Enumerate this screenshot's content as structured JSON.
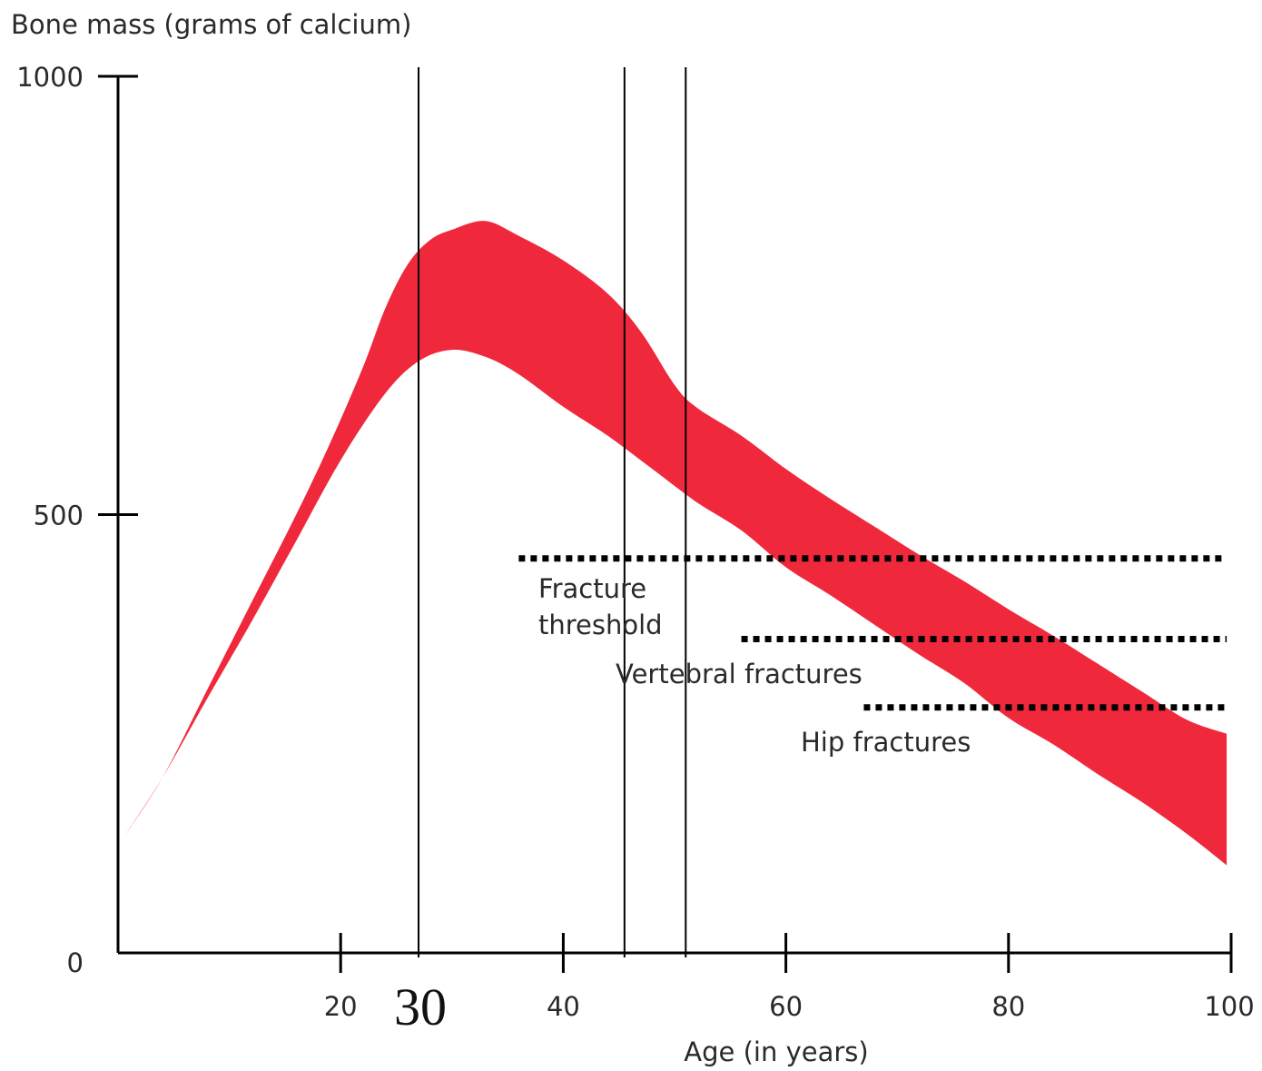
{
  "chart_data": {
    "type": "area",
    "ylabel": "Bone mass (grams of calcium)",
    "xlabel": "Age (in years)",
    "xlim": [
      0,
      100
    ],
    "ylim": [
      0,
      1000
    ],
    "x_ticks": [
      20,
      40,
      60,
      80,
      100
    ],
    "y_ticks": [
      0,
      500,
      1000
    ],
    "band": {
      "color": "#f0283c",
      "upper": [
        [
          0.3,
          128
        ],
        [
          4,
          200
        ],
        [
          8,
          300
        ],
        [
          12,
          400
        ],
        [
          16,
          500
        ],
        [
          19,
          580
        ],
        [
          22,
          668
        ],
        [
          24,
          735
        ],
        [
          26,
          785
        ],
        [
          28,
          813
        ],
        [
          30,
          825
        ],
        [
          33,
          835
        ],
        [
          36,
          818
        ],
        [
          40,
          790
        ],
        [
          44,
          752
        ],
        [
          47,
          708
        ],
        [
          50,
          648
        ],
        [
          52,
          622
        ],
        [
          56,
          590
        ],
        [
          60,
          552
        ],
        [
          64,
          518
        ],
        [
          68,
          486
        ],
        [
          72,
          454
        ],
        [
          76,
          424
        ],
        [
          80,
          392
        ],
        [
          84,
          362
        ],
        [
          88,
          330
        ],
        [
          92,
          298
        ],
        [
          96,
          266
        ],
        [
          99.6,
          250
        ]
      ],
      "lower": [
        [
          0.3,
          128
        ],
        [
          4,
          200
        ],
        [
          8,
          290
        ],
        [
          12,
          378
        ],
        [
          16,
          470
        ],
        [
          20,
          562
        ],
        [
          24,
          638
        ],
        [
          27,
          675
        ],
        [
          30,
          688
        ],
        [
          33,
          680
        ],
        [
          36,
          660
        ],
        [
          40,
          623
        ],
        [
          44,
          590
        ],
        [
          48,
          552
        ],
        [
          52,
          514
        ],
        [
          56,
          482
        ],
        [
          60,
          440
        ],
        [
          64,
          408
        ],
        [
          68,
          374
        ],
        [
          72,
          340
        ],
        [
          76,
          308
        ],
        [
          80,
          268
        ],
        [
          84,
          238
        ],
        [
          88,
          204
        ],
        [
          92,
          172
        ],
        [
          96,
          136
        ],
        [
          99.6,
          100
        ]
      ]
    },
    "vertical_lines_at": [
      27,
      45.5,
      51
    ],
    "thresholds": [
      {
        "label_lines": [
          "Fracture",
          "threshold"
        ],
        "y": 450,
        "x_start": 36,
        "x_end": 99.6
      },
      {
        "label_lines": [
          "Vertebral fractures"
        ],
        "y": 358,
        "x_start": 56,
        "x_end": 99.6
      },
      {
        "label_lines": [
          "Hip fractures"
        ],
        "y": 280,
        "x_start": 67,
        "x_end": 99.6
      }
    ],
    "annotation": {
      "text": "30",
      "x": 27
    }
  }
}
